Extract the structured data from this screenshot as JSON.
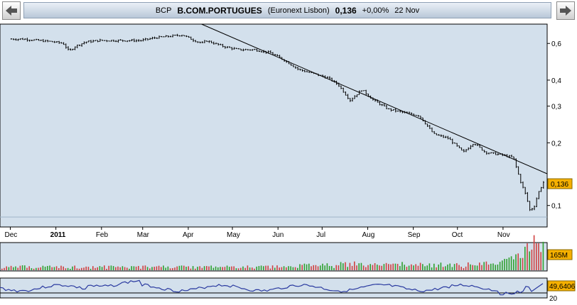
{
  "header": {
    "ticker": "BCP",
    "name": "B.COM.PORTUGUES",
    "exchange": "(Euronext Lisbon)",
    "price": "0,136",
    "change": "+0,00%",
    "date": "22 Nov"
  },
  "badges": {
    "last_price": "0,136",
    "volume": "165M",
    "oscillator": "49,6406"
  },
  "colors": {
    "panel_bg": "#d3e0ec",
    "price_line": "#000000",
    "volume_up": "#2ea02e",
    "volume_down": "#d04040",
    "oscillator_line": "#2a3aa0",
    "badge_fill": "#f5b000"
  },
  "chart_data": [
    {
      "type": "ohlc",
      "y_scale": "log",
      "y_ticks": [
        "0,6",
        "0,4",
        "0,3",
        "0,2",
        "0,1"
      ],
      "x_labels": [
        "Dec",
        "2011",
        "Feb",
        "Mar",
        "Apr",
        "May",
        "Jun",
        "Jul",
        "Aug",
        "Sep",
        "Oct",
        "Nov"
      ],
      "series": [
        {
          "values": [
            [
              "2010-12-01",
              0.63
            ],
            [
              "2010-12-10",
              0.63
            ],
            [
              "2010-12-20",
              0.62
            ],
            [
              "2010-12-31",
              0.61
            ],
            [
              "2011-01-06",
              0.6
            ],
            [
              "2011-01-10",
              0.55
            ],
            [
              "2011-01-14",
              0.58
            ],
            [
              "2011-01-21",
              0.61
            ],
            [
              "2011-01-31",
              0.62
            ],
            [
              "2011-02-15",
              0.62
            ],
            [
              "2011-02-28",
              0.62
            ],
            [
              "2011-03-10",
              0.64
            ],
            [
              "2011-03-20",
              0.65
            ],
            [
              "2011-03-28",
              0.66
            ],
            [
              "2011-04-05",
              0.62
            ],
            [
              "2011-04-11",
              0.6
            ],
            [
              "2011-04-13",
              0.62
            ],
            [
              "2011-04-25",
              0.58
            ],
            [
              "2011-05-05",
              0.56
            ],
            [
              "2011-05-16",
              0.56
            ],
            [
              "2011-05-27",
              0.54
            ],
            [
              "2011-06-05",
              0.5
            ],
            [
              "2011-06-15",
              0.45
            ],
            [
              "2011-06-25",
              0.43
            ],
            [
              "2011-07-05",
              0.41
            ],
            [
              "2011-07-12",
              0.38
            ],
            [
              "2011-07-20",
              0.32
            ],
            [
              "2011-07-28",
              0.36
            ],
            [
              "2011-08-05",
              0.32
            ],
            [
              "2011-08-15",
              0.29
            ],
            [
              "2011-08-25",
              0.28
            ],
            [
              "2011-09-05",
              0.27
            ],
            [
              "2011-09-15",
              0.22
            ],
            [
              "2011-09-25",
              0.21
            ],
            [
              "2011-10-05",
              0.18
            ],
            [
              "2011-10-12",
              0.2
            ],
            [
              "2011-10-20",
              0.18
            ],
            [
              "2011-10-31",
              0.175
            ],
            [
              "2011-11-08",
              0.17
            ],
            [
              "2011-11-13",
              0.13
            ],
            [
              "2011-11-17",
              0.11
            ],
            [
              "2011-11-19",
              0.095
            ],
            [
              "2011-11-22",
              0.098
            ],
            [
              "2011-11-25",
              0.115
            ],
            [
              "2011-11-28",
              0.127
            ],
            [
              "2011-11-30",
              0.136
            ]
          ]
        }
      ],
      "trendline": [
        [
          "2011-04-10",
          0.85
        ],
        [
          "2011-12-01",
          0.142
        ]
      ]
    },
    {
      "type": "bar",
      "name": "volume",
      "badge": "165M"
    },
    {
      "type": "line",
      "name": "oscillator",
      "y_ticks": [
        "20"
      ],
      "badge": "49,6406"
    }
  ]
}
